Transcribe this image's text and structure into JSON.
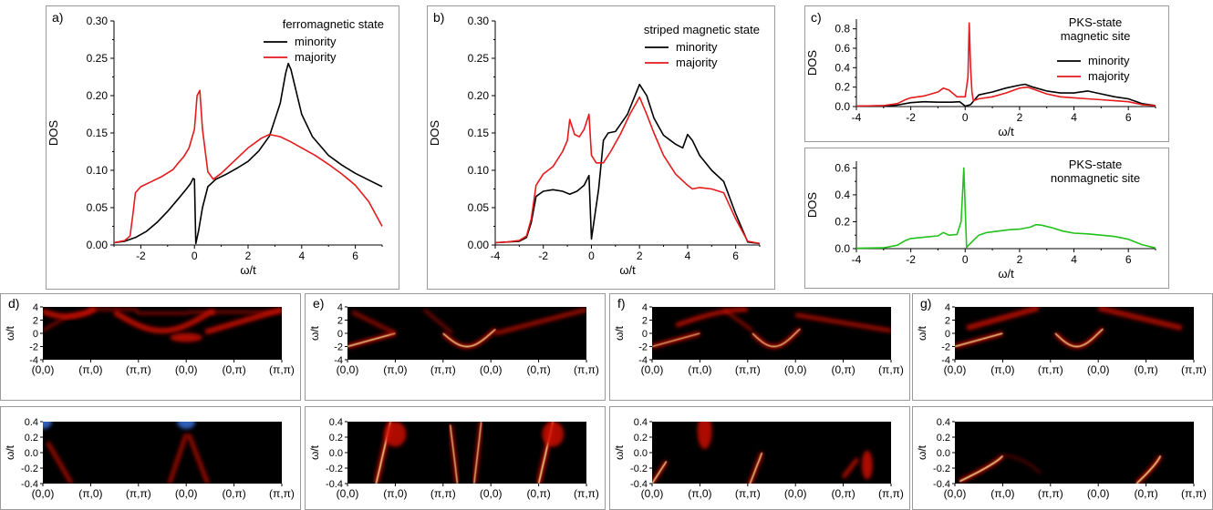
{
  "colors": {
    "minority": "#000000",
    "majority": "#e41a1c",
    "nonmagnetic": "#21c21a",
    "heat_low": "#000000",
    "heat_mid": "#cc1100",
    "heat_high": "#fff2a0",
    "blue": "#3a6fd8"
  },
  "panels": {
    "a": "a)",
    "b": "b)",
    "c": "c)",
    "d": "d)",
    "e": "e)",
    "f": "f)",
    "g": "g)"
  },
  "chart_data": [
    {
      "id": "a",
      "type": "line",
      "title": "ferromagnetic state",
      "xlabel": "ω/t",
      "ylabel": "DOS",
      "xlim": [
        -3,
        7
      ],
      "ylim": [
        0,
        0.3
      ],
      "xticks": [
        "-2",
        "0",
        "2",
        "4",
        "6"
      ],
      "yticks": [
        "0.00",
        "0.05",
        "0.10",
        "0.15",
        "0.20",
        "0.25",
        "0.30"
      ],
      "legend_position": "top-right",
      "series": [
        {
          "name": "minority",
          "color": "#000000",
          "x": [
            -3,
            -2.6,
            -2.2,
            -1.8,
            -1.4,
            -1.0,
            -0.6,
            -0.3,
            -0.15,
            -0.05,
            0.0,
            0.05,
            0.15,
            0.3,
            0.5,
            0.8,
            1.2,
            1.6,
            2.0,
            2.4,
            2.8,
            3.2,
            3.4,
            3.5,
            3.6,
            3.8,
            4.0,
            4.4,
            5.0,
            5.5,
            6.0,
            6.5,
            7.0
          ],
          "y": [
            0.003,
            0.005,
            0.01,
            0.018,
            0.03,
            0.045,
            0.062,
            0.075,
            0.082,
            0.089,
            0.088,
            0.002,
            0.018,
            0.05,
            0.078,
            0.088,
            0.095,
            0.103,
            0.112,
            0.126,
            0.146,
            0.19,
            0.23,
            0.243,
            0.235,
            0.205,
            0.175,
            0.145,
            0.12,
            0.107,
            0.096,
            0.087,
            0.078
          ]
        },
        {
          "name": "majority",
          "color": "#e41a1c",
          "x": [
            -3,
            -2.6,
            -2.4,
            -2.3,
            -2.2,
            -2.0,
            -1.6,
            -1.2,
            -0.8,
            -0.6,
            -0.4,
            -0.2,
            0.0,
            0.1,
            0.2,
            0.3,
            0.5,
            0.7,
            1.0,
            1.5,
            2.0,
            2.5,
            2.8,
            3.2,
            3.6,
            4.0,
            4.5,
            5.0,
            5.5,
            6.0,
            6.5,
            7.0
          ],
          "y": [
            0.003,
            0.006,
            0.012,
            0.04,
            0.07,
            0.078,
            0.085,
            0.092,
            0.101,
            0.11,
            0.118,
            0.13,
            0.155,
            0.2,
            0.207,
            0.155,
            0.098,
            0.088,
            0.096,
            0.113,
            0.13,
            0.143,
            0.148,
            0.145,
            0.138,
            0.13,
            0.12,
            0.108,
            0.095,
            0.08,
            0.058,
            0.025
          ]
        }
      ]
    },
    {
      "id": "b",
      "type": "line",
      "title": "striped magnetic state",
      "xlabel": "ω/t",
      "ylabel": "DOS",
      "xlim": [
        -4,
        7
      ],
      "ylim": [
        0,
        0.3
      ],
      "xticks": [
        "-4",
        "-2",
        "0",
        "2",
        "4",
        "6"
      ],
      "yticks": [
        "0.00",
        "0.05",
        "0.10",
        "0.15",
        "0.20",
        "0.25",
        "0.30"
      ],
      "legend_position": "top-right",
      "series": [
        {
          "name": "minority",
          "color": "#000000",
          "x": [
            -4,
            -3.5,
            -3.0,
            -2.7,
            -2.5,
            -2.3,
            -2.0,
            -1.6,
            -1.2,
            -0.9,
            -0.6,
            -0.3,
            -0.1,
            0.0,
            0.1,
            0.3,
            0.5,
            0.7,
            1.0,
            1.5,
            2.0,
            2.3,
            2.6,
            3.0,
            3.5,
            3.8,
            4.0,
            4.2,
            4.5,
            5.0,
            5.5,
            6.0,
            6.5,
            7.0
          ],
          "y": [
            0.003,
            0.004,
            0.005,
            0.01,
            0.03,
            0.065,
            0.072,
            0.074,
            0.072,
            0.068,
            0.072,
            0.08,
            0.093,
            0.008,
            0.03,
            0.075,
            0.14,
            0.15,
            0.152,
            0.175,
            0.215,
            0.2,
            0.17,
            0.147,
            0.135,
            0.13,
            0.148,
            0.14,
            0.12,
            0.1,
            0.085,
            0.042,
            0.004,
            0.002
          ]
        },
        {
          "name": "majority",
          "color": "#e41a1c",
          "x": [
            -4,
            -3.5,
            -3.0,
            -2.7,
            -2.5,
            -2.3,
            -2.0,
            -1.6,
            -1.2,
            -1.0,
            -0.9,
            -0.7,
            -0.5,
            -0.3,
            -0.1,
            0.0,
            0.2,
            0.5,
            0.8,
            1.2,
            1.6,
            2.0,
            2.3,
            2.6,
            3.0,
            3.5,
            4.0,
            4.2,
            4.5,
            5.0,
            5.5,
            6.0,
            6.5,
            7.0
          ],
          "y": [
            0.003,
            0.004,
            0.006,
            0.012,
            0.035,
            0.08,
            0.095,
            0.105,
            0.125,
            0.14,
            0.168,
            0.148,
            0.145,
            0.155,
            0.175,
            0.12,
            0.11,
            0.11,
            0.125,
            0.148,
            0.175,
            0.198,
            0.175,
            0.15,
            0.12,
            0.095,
            0.08,
            0.075,
            0.077,
            0.075,
            0.07,
            0.035,
            0.005,
            0.002
          ]
        }
      ]
    },
    {
      "id": "c",
      "type": "line",
      "title": "PKS-state\nmagnetic site",
      "xlabel": "ω/t",
      "ylabel": "DOS",
      "xlim": [
        -4,
        7
      ],
      "ylim": [
        0,
        0.9
      ],
      "xticks": [
        "-4",
        "-2",
        "0",
        "2",
        "4",
        "6"
      ],
      "yticks": [
        "0.0",
        "0.2",
        "0.4",
        "0.6",
        "0.8"
      ],
      "legend_position": "right",
      "series": [
        {
          "name": "minority",
          "color": "#000000",
          "x": [
            -4,
            -3,
            -2.5,
            -2.0,
            -1.5,
            -1.0,
            -0.5,
            -0.2,
            0.0,
            0.2,
            0.5,
            1.0,
            1.5,
            2.0,
            2.2,
            2.5,
            3.0,
            3.5,
            4.0,
            4.5,
            5.0,
            5.5,
            6.0,
            6.5,
            7.0
          ],
          "y": [
            0.005,
            0.008,
            0.015,
            0.04,
            0.05,
            0.045,
            0.045,
            0.05,
            0.005,
            0.02,
            0.12,
            0.15,
            0.19,
            0.22,
            0.23,
            0.2,
            0.16,
            0.14,
            0.14,
            0.16,
            0.13,
            0.1,
            0.08,
            0.03,
            0.01
          ]
        },
        {
          "name": "majority",
          "color": "#e41a1c",
          "x": [
            -4,
            -3,
            -2.5,
            -2.2,
            -2.0,
            -1.5,
            -1.0,
            -0.8,
            -0.6,
            -0.3,
            0.0,
            0.1,
            0.15,
            0.2,
            0.25,
            0.3,
            0.5,
            1.0,
            1.5,
            2.0,
            2.3,
            2.6,
            3.0,
            3.5,
            4.0,
            4.5,
            5.0,
            5.5,
            6.0,
            6.5,
            7.0
          ],
          "y": [
            0.005,
            0.01,
            0.03,
            0.07,
            0.09,
            0.11,
            0.15,
            0.19,
            0.17,
            0.1,
            0.1,
            0.3,
            0.86,
            0.4,
            0.15,
            0.06,
            0.08,
            0.1,
            0.14,
            0.19,
            0.2,
            0.17,
            0.13,
            0.1,
            0.09,
            0.08,
            0.07,
            0.06,
            0.05,
            0.02,
            0.01
          ]
        }
      ]
    },
    {
      "id": "c2",
      "type": "line",
      "title": "PKS-state\nnonmagnetic site",
      "xlabel": "ω/t",
      "ylabel": "DOS",
      "xlim": [
        -4,
        7
      ],
      "ylim": [
        0,
        0.65
      ],
      "xticks": [
        "-4",
        "-2",
        "0",
        "2",
        "4",
        "6"
      ],
      "yticks": [
        "0.0",
        "0.2",
        "0.4",
        "0.6"
      ],
      "legend_position": "none",
      "series": [
        {
          "name": "",
          "color": "#21c21a",
          "x": [
            -4,
            -3,
            -2.5,
            -2.2,
            -2.0,
            -1.5,
            -1.0,
            -0.8,
            -0.6,
            -0.3,
            -0.15,
            -0.05,
            0.0,
            0.05,
            0.15,
            0.3,
            0.5,
            0.8,
            1.2,
            1.6,
            2.0,
            2.4,
            2.6,
            2.8,
            3.2,
            3.6,
            4.0,
            4.5,
            5.0,
            5.5,
            6.0,
            6.5,
            7.0
          ],
          "y": [
            0.003,
            0.006,
            0.025,
            0.06,
            0.075,
            0.085,
            0.095,
            0.12,
            0.1,
            0.105,
            0.2,
            0.6,
            0.3,
            0.01,
            0.03,
            0.06,
            0.1,
            0.12,
            0.13,
            0.14,
            0.145,
            0.16,
            0.178,
            0.175,
            0.155,
            0.13,
            0.115,
            0.11,
            0.1,
            0.09,
            0.07,
            0.03,
            0.005
          ]
        }
      ]
    },
    {
      "id": "d",
      "type": "heatmap",
      "xticks": [
        "(0,0)",
        "(π,0)",
        "(π,π)",
        "(0,0)",
        "(0,π)",
        "(π,π)"
      ],
      "ylabel": "ω/t",
      "yticks_top": [
        "4",
        "2",
        "0",
        "-2",
        "-4"
      ],
      "yticks_bottom": [
        "0.4",
        "0.2",
        "0.0",
        "-0.2",
        "-0.4"
      ]
    },
    {
      "id": "e",
      "type": "heatmap",
      "xticks": [
        "(0,0)",
        "(π,0)",
        "(π,π)",
        "(0,0)",
        "(0,π)",
        "(π,π)"
      ],
      "ylabel": "ω/t",
      "yticks_top": [
        "4",
        "2",
        "0",
        "-2",
        "-4"
      ],
      "yticks_bottom": [
        "0.4",
        "0.2",
        "0.0",
        "-0.2",
        "-0.4"
      ]
    },
    {
      "id": "f",
      "type": "heatmap",
      "xticks": [
        "(0,0)",
        "(π,0)",
        "(π,π)",
        "(0,0)",
        "(0,π)",
        "(π,π)"
      ],
      "ylabel": "ω/t",
      "yticks_top": [
        "4",
        "2",
        "0",
        "-2",
        "-4"
      ],
      "yticks_bottom": [
        "0.4",
        "0.2",
        "0.0",
        "-0.2",
        "-0.4"
      ]
    },
    {
      "id": "g",
      "type": "heatmap",
      "xticks": [
        "(0,0)",
        "(π,0)",
        "(π,π)",
        "(0,0)",
        "(0,π)",
        "(π,π)"
      ],
      "ylabel": "ω/t",
      "yticks_top": [
        "4",
        "2",
        "0",
        "-2",
        "-4"
      ],
      "yticks_bottom": [
        "0.4",
        "0.2",
        "0.0",
        "-0.2",
        "-0.4"
      ]
    }
  ]
}
